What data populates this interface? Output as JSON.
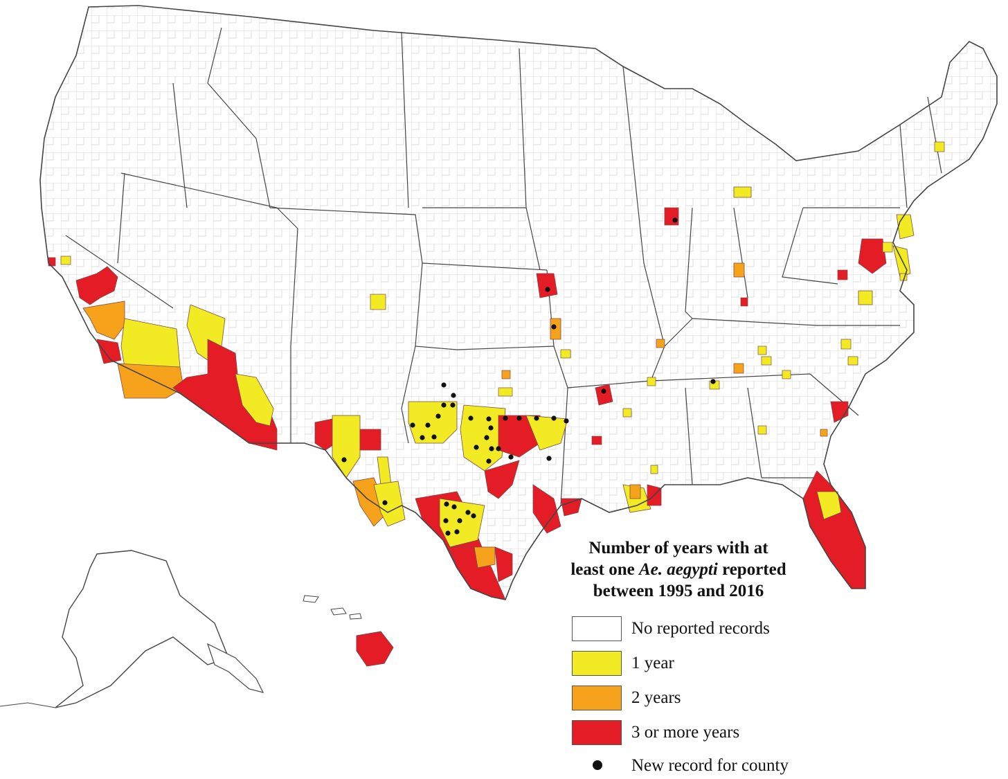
{
  "map": {
    "title_line1": "Number of years with at",
    "title_line2_pre": "least one ",
    "title_line2_species": "Ae. aegypti",
    "title_line2_post": " reported",
    "title_line3": "between 1995 and 2016"
  },
  "legend": {
    "items": [
      {
        "label": "No reported records",
        "color": "#ffffff"
      },
      {
        "label": "1 year",
        "color": "#f2ea23"
      },
      {
        "label": "2 years",
        "color": "#f7a21b"
      },
      {
        "label": "3 or more years",
        "color": "#e31c25"
      }
    ],
    "new_record_label": "New record for county"
  },
  "colors": {
    "none": "#ffffff",
    "one_year": "#f2ea23",
    "two_years": "#f7a21b",
    "three_plus": "#e31c25",
    "border": "#444444",
    "county_line": "#c9c9c9",
    "new_record_dot": "#111111"
  }
}
